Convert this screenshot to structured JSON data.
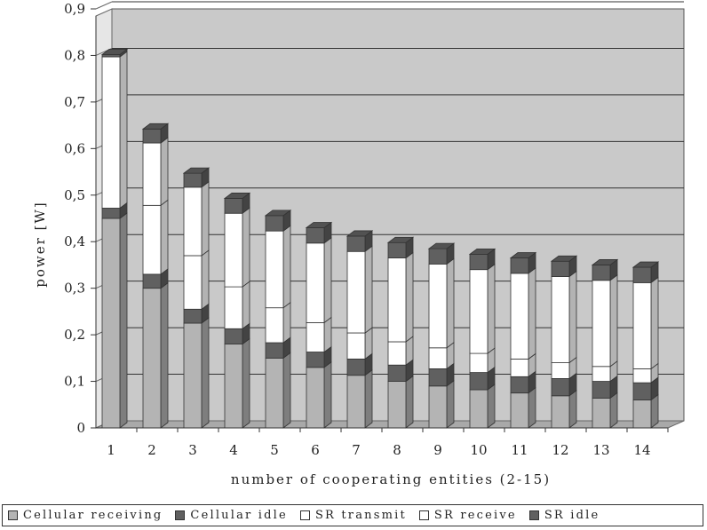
{
  "chart_data": {
    "type": "bar",
    "stacked": true,
    "three_d": true,
    "title": "",
    "xlabel": "number of cooperating entities (2-15)",
    "ylabel": "power [W]",
    "ylim": [
      0,
      0.9
    ],
    "y_ticks": [
      "0",
      "0,1",
      "0,2",
      "0,3",
      "0,4",
      "0,5",
      "0,6",
      "0,7",
      "0,8",
      "0,9"
    ],
    "categories": [
      "1",
      "2",
      "3",
      "4",
      "5",
      "6",
      "7",
      "8",
      "9",
      "10",
      "11",
      "12",
      "13",
      "14"
    ],
    "grid": true,
    "legend_position": "bottom",
    "series": [
      {
        "name": "Cellular receiving",
        "color": "#b4b4b4",
        "values": [
          0.45,
          0.3,
          0.225,
          0.18,
          0.15,
          0.13,
          0.113,
          0.1,
          0.09,
          0.082,
          0.075,
          0.069,
          0.064,
          0.06
        ]
      },
      {
        "name": "Cellular idle",
        "color": "#606060",
        "values": [
          0.022,
          0.03,
          0.03,
          0.033,
          0.033,
          0.033,
          0.035,
          0.035,
          0.037,
          0.037,
          0.035,
          0.037,
          0.036,
          0.037
        ]
      },
      {
        "name": "SR transmit",
        "color": "#ffffff",
        "values": [
          0.0,
          0.148,
          0.115,
          0.09,
          0.075,
          0.063,
          0.056,
          0.05,
          0.045,
          0.041,
          0.038,
          0.034,
          0.032,
          0.03
        ]
      },
      {
        "name": "SR receive",
        "color": "#ffffff",
        "values": [
          0.325,
          0.134,
          0.147,
          0.158,
          0.165,
          0.171,
          0.175,
          0.18,
          0.18,
          0.18,
          0.184,
          0.185,
          0.185,
          0.185
        ]
      },
      {
        "name": "SR idle",
        "color": "#606060",
        "values": [
          0.005,
          0.03,
          0.03,
          0.032,
          0.033,
          0.033,
          0.033,
          0.033,
          0.033,
          0.033,
          0.033,
          0.033,
          0.033,
          0.033
        ]
      }
    ]
  }
}
